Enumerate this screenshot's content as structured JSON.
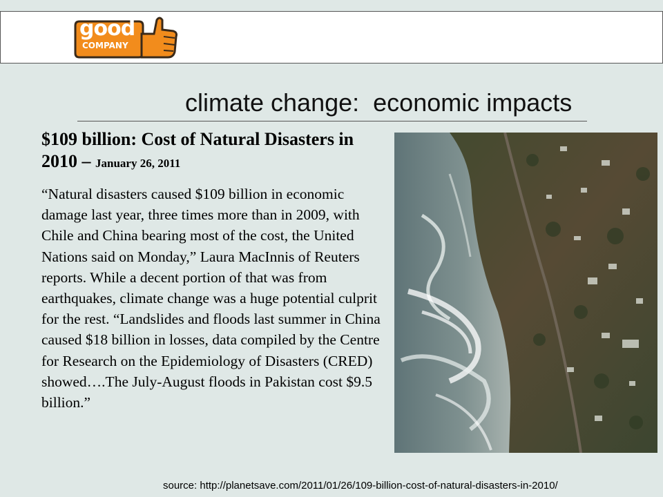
{
  "header": {
    "logo": {
      "main": "good",
      "sub": "COMPANY"
    }
  },
  "slide": {
    "title": "climate change:  economic impacts",
    "headline": "$109 billion: Cost of Natural Disasters in 2010 – ",
    "headline_date": "January 26, 2011",
    "body": "“Natural disasters caused $109 billion in economic damage last year, three times more than in 2009, with Chile and China bearing most of the cost, the United Nations said on Monday,” Laura MacInnis of Reuters reports. While a decent portion of that was from earthquakes, climate change was a huge potential culprit for the rest. “Landslides and floods last summer in China caused $18 billion in losses, data compiled by the Centre for Research on the Epidemiology of Disasters (CRED) showed….The July-August floods in Pakistan cost $9.5 billion.”",
    "source": "source:  http://planetsave.com/2011/01/26/109-billion-cost-of-natural-disasters-in-2010/"
  },
  "colors": {
    "background": "#dfe8e6",
    "logo_orange": "#f28c1c",
    "logo_dark": "#3a2a1a"
  }
}
